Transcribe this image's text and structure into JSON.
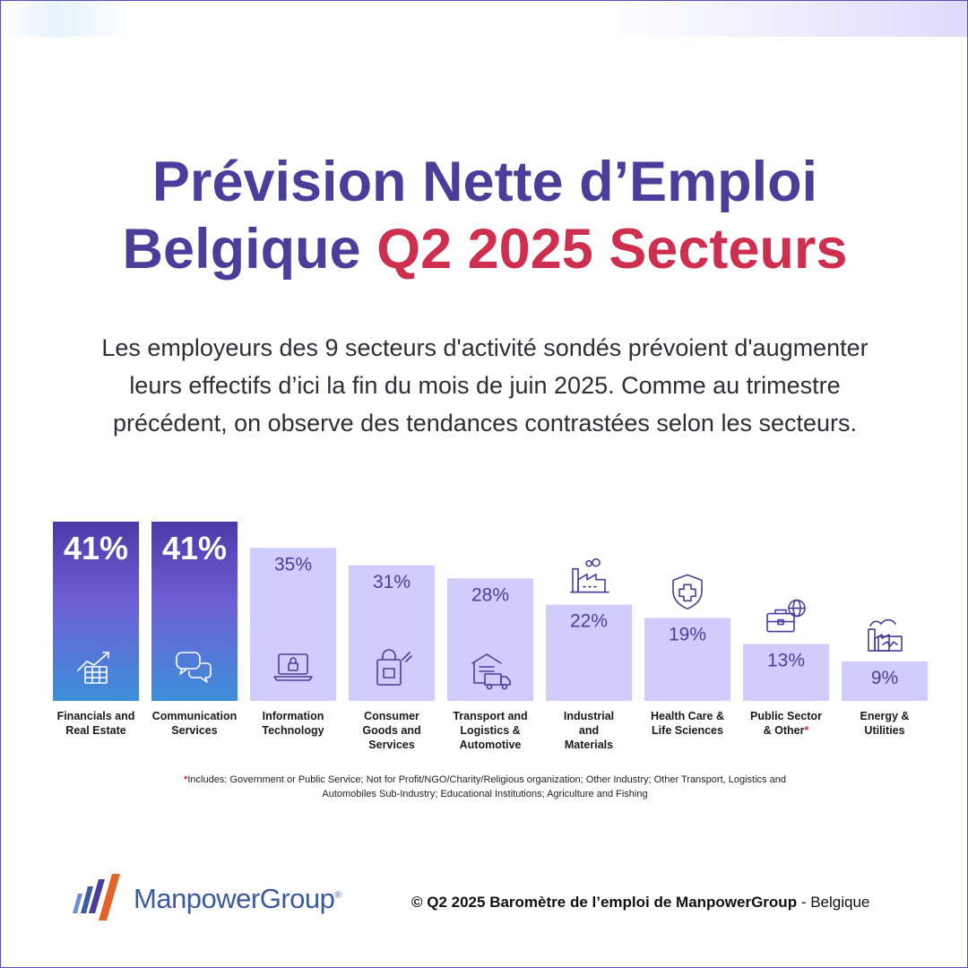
{
  "title": {
    "line1": "Prévision Nette d’Emploi",
    "line2_a": "Belgique ",
    "line2_b": "Q2 2025 Secteurs"
  },
  "intro": "Les employeurs des 9 secteurs d'activité sondés prévoient d'augmenter leurs effectifs d’ici la fin du mois de juin 2025. Comme au trimestre précédent, on observe des tendances contrastées selon les secteurs.",
  "chart_data": {
    "type": "bar",
    "title": "",
    "xlabel": "",
    "ylabel": "",
    "ylim": [
      0,
      41
    ],
    "categories": [
      "Financials and Real Estate",
      "Communication Services",
      "Information Technology",
      "Consumer Goods and Services",
      "Transport and Logistics & Automotive",
      "Industrial and Materials",
      "Health Care & Life Sciences",
      "Public Sector & Other*",
      "Energy & Utilities"
    ],
    "category_lines": [
      [
        "Financials and",
        "Real Estate"
      ],
      [
        "Communication",
        "Services"
      ],
      [
        "Information",
        "Technology"
      ],
      [
        "Consumer",
        "Goods and",
        "Services"
      ],
      [
        "Transport and",
        "Logistics &",
        "Automotive"
      ],
      [
        "Industrial",
        "and",
        "Materials"
      ],
      [
        "Health Care &",
        "Life Sciences"
      ],
      [
        "Public Sector",
        "& Other"
      ],
      [
        "Energy &",
        "Utilities"
      ]
    ],
    "values": [
      41,
      41,
      35,
      31,
      28,
      22,
      19,
      13,
      9
    ],
    "value_labels": [
      "41%",
      "41%",
      "35%",
      "31%",
      "28%",
      "22%",
      "19%",
      "13%",
      "9%"
    ],
    "highlighted": [
      true,
      true,
      false,
      false,
      false,
      false,
      false,
      false,
      false
    ],
    "icons": [
      "growth-chart-icon",
      "chat-bubbles-icon",
      "laptop-lock-icon",
      "shopping-bag-icon",
      "warehouse-truck-icon",
      "factory-icon",
      "medical-shield-icon",
      "briefcase-globe-icon",
      "power-plant-icon"
    ],
    "colors": {
      "highlight_top": "#4b3aa8",
      "highlight_mid": "#6f5fd6",
      "highlight_bottom": "#3c8fd8",
      "bar": "#d0ccfb",
      "value_text": "#4b3e9a",
      "icon": "#4b3e9a",
      "asterisk": "#cf2f4e"
    }
  },
  "footnote": {
    "marker": "*",
    "text": "Includes: Government or Public Service; Not for Profit/NGO/Charity/Religious organization; Other Industry; Other Transport, Logistics and Automobiles Sub-Industry; Educational Institutions; Agriculture and Fishing"
  },
  "brand": "ManpowerGroup",
  "copyright": {
    "bold": "© Q2 2025 Baromètre de l’emploi de ManpowerGroup",
    "rest": " - Belgique"
  }
}
